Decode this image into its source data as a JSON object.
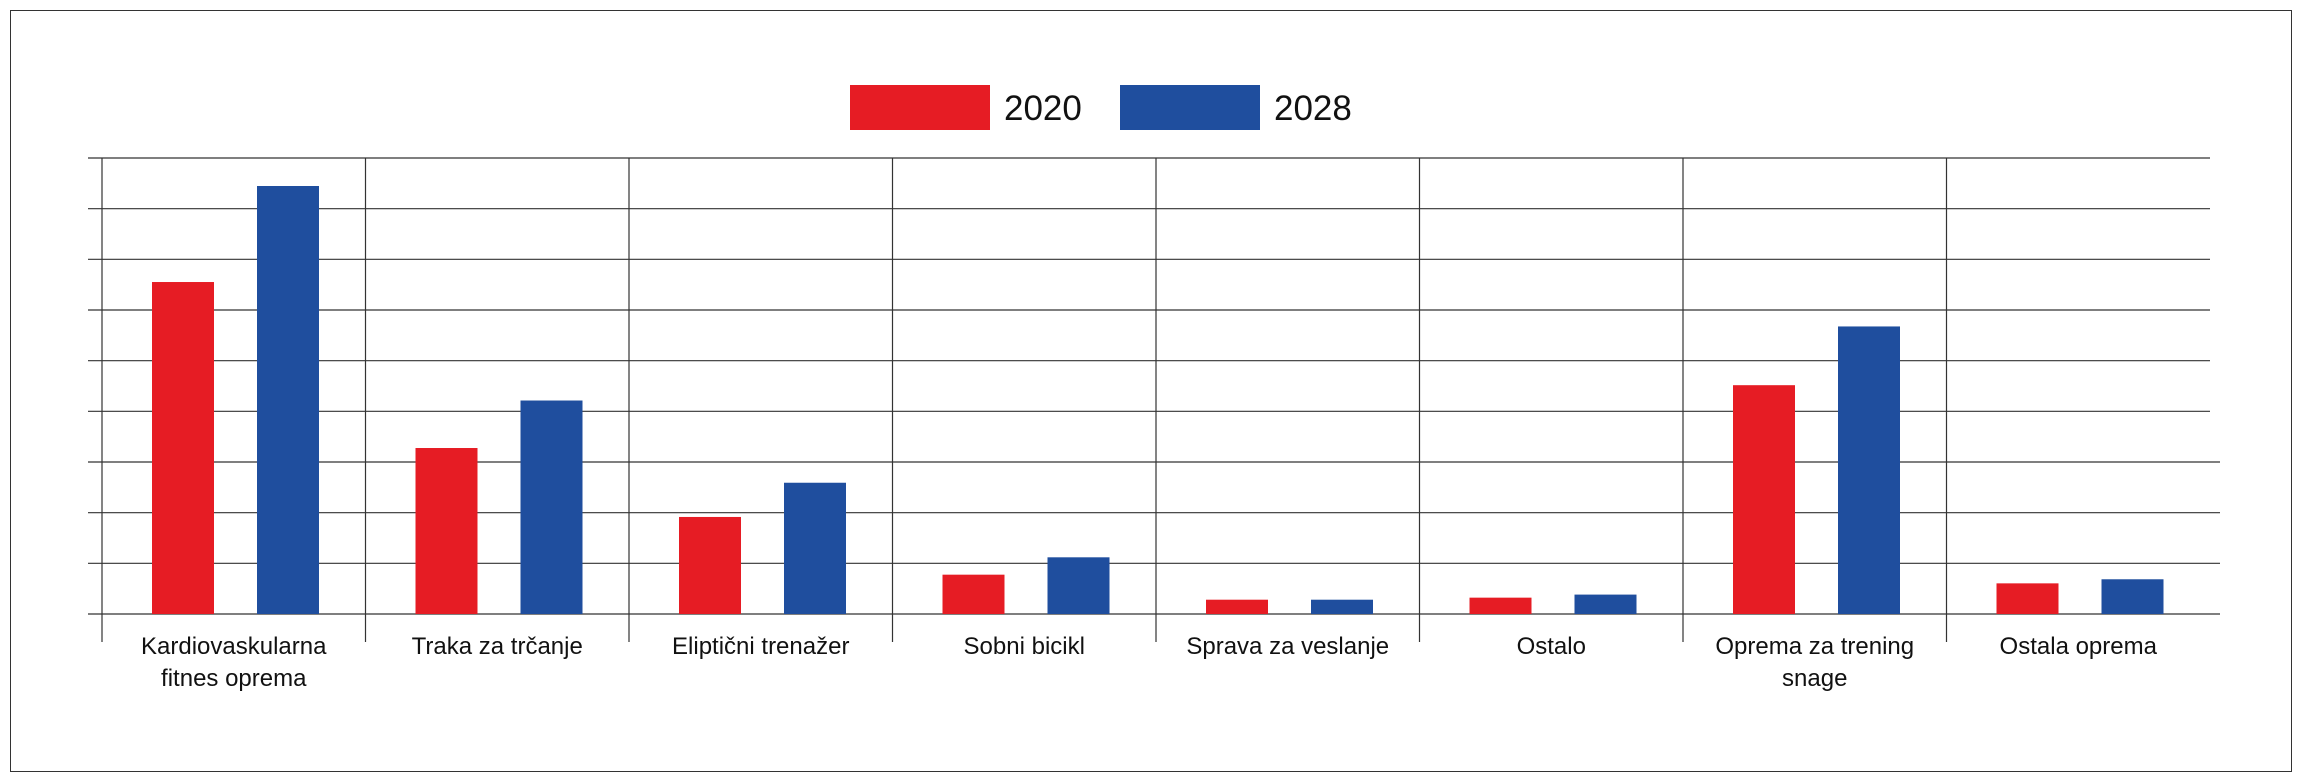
{
  "chart_data": {
    "type": "bar",
    "categories": [
      [
        "Kardiovaskularna",
        "fitnes oprema"
      ],
      [
        "Traka za trčanje"
      ],
      [
        "Eliptični trenažer"
      ],
      [
        "Sobni bicikl"
      ],
      [
        "Sprava za veslanje"
      ],
      [
        "Ostalo"
      ],
      [
        "Oprema za trening",
        "snage"
      ],
      [
        "Ostala oprema"
      ]
    ],
    "series": [
      {
        "name": "2020",
        "color": "#e61c24",
        "values": [
          6.5,
          3.25,
          1.9,
          0.77,
          0.28,
          0.32,
          4.48,
          0.6
        ]
      },
      {
        "name": "2028",
        "color": "#1f4e9e",
        "values": [
          8.38,
          4.18,
          2.57,
          1.11,
          0.28,
          0.38,
          5.63,
          0.68
        ]
      }
    ],
    "ylim": [
      0,
      9
    ],
    "grid": true,
    "legend_position": "top-center",
    "title": "",
    "xlabel": "",
    "ylabel": ""
  }
}
